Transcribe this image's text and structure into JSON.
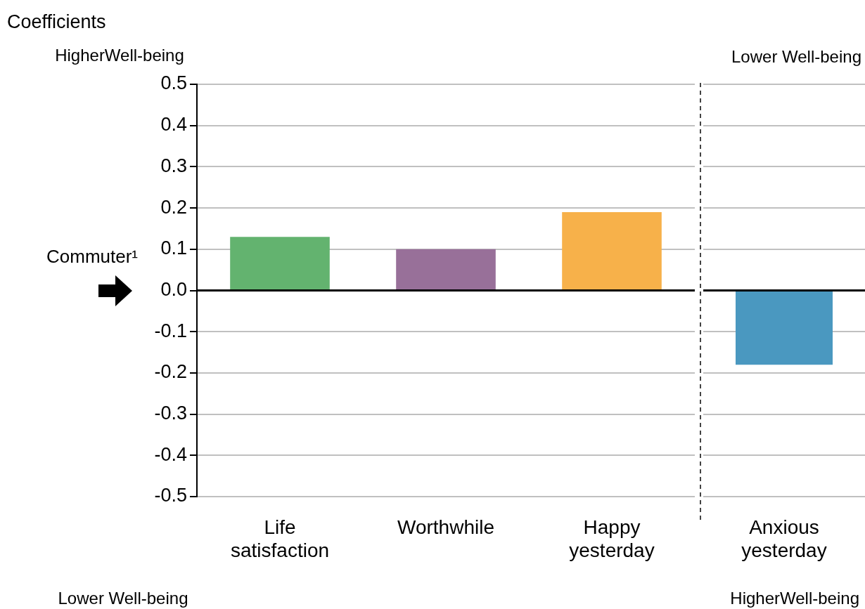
{
  "chart_data": [
    {
      "type": "bar",
      "ylabel": "Coefficients",
      "categories": [
        "Life satisfaction",
        "Worthwhile",
        "Happy yesterday"
      ],
      "values": [
        0.13,
        0.1,
        0.19
      ],
      "colors": [
        "#63b36f",
        "#987099",
        "#f7b14a"
      ],
      "ylim": [
        -0.5,
        0.5
      ],
      "yticks": [
        -0.5,
        -0.4,
        -0.3,
        -0.2,
        -0.1,
        {
          "value": 0,
          "label": "0.0"
        },
        0.1,
        0.2,
        0.3,
        0.4,
        0.5
      ],
      "grid": "y",
      "ref_lines": [
        {
          "axis": "y",
          "value": 0,
          "label": "Commuter¹",
          "color": "#000000"
        }
      ],
      "annotations": [
        "HigherWell-being",
        "Lower Well-being"
      ]
    },
    {
      "type": "bar",
      "categories": [
        "Anxious yesterday"
      ],
      "values": [
        -0.18
      ],
      "colors": [
        "#4a98c0"
      ],
      "ylim": [
        -0.5,
        0.5
      ],
      "yticks": [
        -0.5,
        -0.4,
        -0.3,
        -0.2,
        -0.1,
        0,
        0.1,
        0.2,
        0.3,
        0.4,
        0.5
      ],
      "grid": "y",
      "tick_labels": "x",
      "ref_lines": [
        {
          "axis": "y",
          "value": 0,
          "color": "#000000"
        }
      ],
      "annotations": [
        "Lower Well-being",
        "HigherWell-being"
      ]
    }
  ]
}
